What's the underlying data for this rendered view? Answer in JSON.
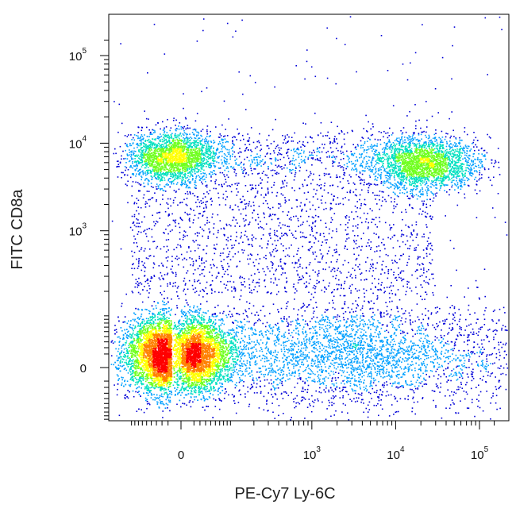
{
  "chart_data": {
    "type": "scatter",
    "style": "flow-cytometry density dot plot",
    "xlabel": "PE-Cy7 Ly-6C",
    "ylabel": "FITC CD8a",
    "x_scale": "biexponential",
    "y_scale": "biexponential",
    "x_range": [
      -200,
      150000
    ],
    "y_range": [
      -200,
      250000
    ],
    "x_ticks": [
      {
        "value": 0,
        "base": "0",
        "exp": ""
      },
      {
        "value": 1000,
        "base": "10",
        "exp": "3"
      },
      {
        "value": 10000,
        "base": "10",
        "exp": "4"
      },
      {
        "value": 100000,
        "base": "10",
        "exp": "5"
      }
    ],
    "y_ticks": [
      {
        "value": 0,
        "base": "0",
        "exp": ""
      },
      {
        "value": 1000,
        "base": "10",
        "exp": "3"
      },
      {
        "value": 10000,
        "base": "10",
        "exp": "4"
      },
      {
        "value": 100000,
        "base": "10",
        "exp": "5"
      }
    ],
    "populations": [
      {
        "center_x": -15,
        "center_y": 20,
        "relative_size": 0.55,
        "peak_density": "high"
      },
      {
        "center_x": -15,
        "center_y": 7000,
        "relative_size": 0.12,
        "peak_density": "medium"
      },
      {
        "center_x": 22000,
        "center_y": 6000,
        "relative_size": 0.13,
        "peak_density": "medium"
      },
      {
        "center_x": 3000,
        "center_y": 30,
        "relative_size": 0.2,
        "peak_density": "low"
      }
    ],
    "density_colors": [
      "#0000d8",
      "#00a0ff",
      "#00e0c0",
      "#70ff20",
      "#ffff00",
      "#ff8000",
      "#ff0000"
    ],
    "grid": false,
    "legend": "none"
  }
}
